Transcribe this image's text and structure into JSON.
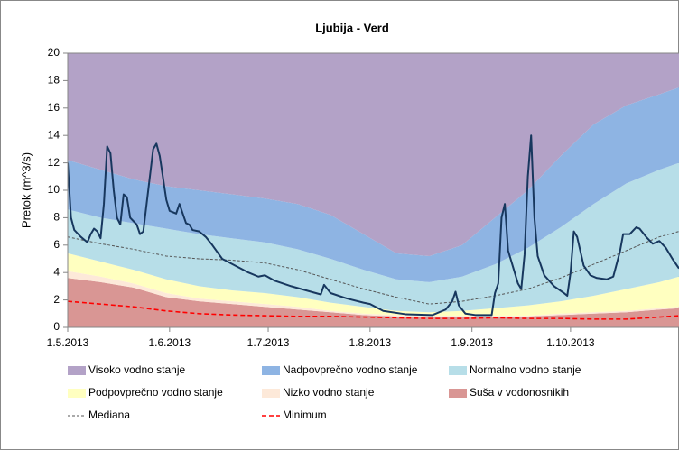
{
  "chart_data": {
    "type": "area",
    "title": "Ljubija - Verd",
    "y_label": "Pretok (m^3/s)",
    "x": [
      "2013-05-01",
      "2013-05-11",
      "2013-05-21",
      "2013-05-31",
      "2013-06-10",
      "2013-06-20",
      "2013-06-30",
      "2013-07-10",
      "2013-07-20",
      "2013-07-30",
      "2013-08-09",
      "2013-08-19",
      "2013-08-29",
      "2013-09-08",
      "2013-09-18",
      "2013-09-28",
      "2013-10-08",
      "2013-10-18",
      "2013-10-28",
      "2013-11-03"
    ],
    "xlim": [
      "2013-05-01",
      "2013-11-03"
    ],
    "xticks": [
      {
        "value": "2013-05-01",
        "label": "1.5.2013"
      },
      {
        "value": "2013-06-01",
        "label": "1.6.2013"
      },
      {
        "value": "2013-07-01",
        "label": "1.7.2013"
      },
      {
        "value": "2013-08-01",
        "label": "1.8.2013"
      },
      {
        "value": "2013-09-01",
        "label": "1.9.2013"
      },
      {
        "value": "2013-10-01",
        "label": "1.10.2013"
      }
    ],
    "ylim": [
      0,
      20
    ],
    "yticks": [
      0,
      2,
      4,
      6,
      8,
      10,
      12,
      14,
      16,
      18,
      20
    ],
    "legend": "bottom",
    "series": [
      {
        "name": "Visoko vodno stanje",
        "type": "area",
        "stacked": true,
        "color": "#b3a2c7",
        "values": [
          7.8,
          8.5,
          9.2,
          9.7,
          10,
          10.3,
          10.6,
          11,
          11.8,
          13.2,
          14.6,
          14.8,
          14,
          12,
          10,
          7.5,
          5.2,
          3.8,
          3,
          2.5
        ]
      },
      {
        "name": "Nadpovprečno vodno stanje",
        "type": "area",
        "stacked": true,
        "color": "#8eb4e3",
        "values": [
          3.6,
          3.5,
          3.2,
          3.1,
          3.2,
          3.2,
          3.2,
          3.3,
          3.2,
          2.6,
          1.9,
          1.9,
          2.3,
          3.4,
          4.2,
          5.2,
          5.8,
          5.7,
          5.5,
          5.5
        ]
      },
      {
        "name": "Normalno vodno stanje",
        "type": "area",
        "stacked": true,
        "color": "#b7dee8",
        "values": [
          3.2,
          3.2,
          3.4,
          3.7,
          3.8,
          3.8,
          3.7,
          3.5,
          3.2,
          2.7,
          2.3,
          2.2,
          2.5,
          3.2,
          4.2,
          5.4,
          6.7,
          7.7,
          8.2,
          8.3
        ]
      },
      {
        "name": "Podpovprečno vodno stanje",
        "type": "area",
        "stacked": true,
        "color": "#ffffc0",
        "values": [
          1.3,
          1.1,
          1.0,
          1.0,
          0.9,
          0.8,
          0.8,
          0.7,
          0.6,
          0.5,
          0.3,
          0.25,
          0.35,
          0.55,
          0.75,
          0.9,
          1.2,
          1.6,
          1.9,
          2.2
        ]
      },
      {
        "name": "Nizko vodno stanje",
        "type": "area",
        "stacked": true,
        "color": "#fde9d9",
        "values": [
          0.5,
          0.4,
          0.3,
          0.3,
          0.2,
          0.2,
          0.2,
          0.2,
          0.1,
          0.1,
          0.1,
          0.05,
          0.05,
          0.05,
          0.05,
          0.1,
          0.1,
          0.1,
          0.1,
          0.1
        ]
      },
      {
        "name": "Suša v vodonosnikih",
        "type": "area",
        "stacked": true,
        "color": "#d99694",
        "values": [
          3.6,
          3.3,
          2.9,
          2.2,
          1.9,
          1.7,
          1.5,
          1.3,
          1.1,
          0.9,
          0.8,
          0.8,
          0.8,
          0.8,
          0.8,
          0.9,
          1.0,
          1.1,
          1.3,
          1.4
        ]
      },
      {
        "name": "Mediana",
        "type": "line",
        "dash": "3,2",
        "width": 1,
        "color": "#555555",
        "values": [
          6.6,
          6.1,
          5.7,
          5.2,
          5.0,
          4.9,
          4.7,
          4.2,
          3.5,
          2.8,
          2.2,
          1.7,
          1.9,
          2.3,
          2.8,
          3.6,
          4.6,
          5.6,
          6.6,
          7.0
        ]
      },
      {
        "name": "Minimum",
        "type": "line",
        "dash": "5,3",
        "width": 1.6,
        "color": "#ff0000",
        "values": [
          1.9,
          1.7,
          1.5,
          1.2,
          1.0,
          0.9,
          0.85,
          0.8,
          0.8,
          0.75,
          0.7,
          0.65,
          0.65,
          0.7,
          0.65,
          0.65,
          0.6,
          0.6,
          0.75,
          0.85
        ]
      },
      {
        "type": "line",
        "width": 2,
        "color": "#17375e",
        "x": [
          "2013-05-01",
          "2013-05-02",
          "2013-05-03",
          "2013-05-05",
          "2013-05-07",
          "2013-05-08",
          "2013-05-09",
          "2013-05-10",
          "2013-05-11",
          "2013-05-12",
          "2013-05-13",
          "2013-05-14",
          "2013-05-15",
          "2013-05-16",
          "2013-05-17",
          "2013-05-18",
          "2013-05-19",
          "2013-05-20",
          "2013-05-22",
          "2013-05-23",
          "2013-05-24",
          "2013-05-26",
          "2013-05-27",
          "2013-05-28",
          "2013-05-29",
          "2013-05-31",
          "2013-06-01",
          "2013-06-03",
          "2013-06-04",
          "2013-06-06",
          "2013-06-07",
          "2013-06-08",
          "2013-06-10",
          "2013-06-12",
          "2013-06-14",
          "2013-06-17",
          "2013-06-21",
          "2013-06-25",
          "2013-06-28",
          "2013-06-30",
          "2013-07-03",
          "2013-07-08",
          "2013-07-14",
          "2013-07-17",
          "2013-07-18",
          "2013-07-20",
          "2013-07-25",
          "2013-07-30",
          "2013-08-01",
          "2013-08-05",
          "2013-08-12",
          "2013-08-20",
          "2013-08-24",
          "2013-08-26",
          "2013-08-27",
          "2013-08-28",
          "2013-08-30",
          "2013-09-02",
          "2013-09-07",
          "2013-09-08",
          "2013-09-09",
          "2013-09-10",
          "2013-09-11",
          "2013-09-12",
          "2013-09-14",
          "2013-09-15",
          "2013-09-16",
          "2013-09-17",
          "2013-09-18",
          "2013-09-19",
          "2013-09-20",
          "2013-09-21",
          "2013-09-23",
          "2013-09-26",
          "2013-09-29",
          "2013-09-30",
          "2013-10-01",
          "2013-10-02",
          "2013-10-03",
          "2013-10-05",
          "2013-10-07",
          "2013-10-09",
          "2013-10-12",
          "2013-10-14",
          "2013-10-16",
          "2013-10-17",
          "2013-10-19",
          "2013-10-21",
          "2013-10-22",
          "2013-10-24",
          "2013-10-26",
          "2013-10-28",
          "2013-10-30",
          "2013-11-01",
          "2013-11-03"
        ],
        "values": [
          12.0,
          8.0,
          7.1,
          6.6,
          6.2,
          6.8,
          7.2,
          7.0,
          6.5,
          9.0,
          13.2,
          12.7,
          10.0,
          8.0,
          7.5,
          9.7,
          9.5,
          8.0,
          7.5,
          6.8,
          7.0,
          11.0,
          13.0,
          13.4,
          12.5,
          9.3,
          8.5,
          8.3,
          9.0,
          7.6,
          7.5,
          7.1,
          7.0,
          6.6,
          6.0,
          5.0,
          4.5,
          4.0,
          3.7,
          3.8,
          3.4,
          3.0,
          2.6,
          2.4,
          3.1,
          2.5,
          2.1,
          1.8,
          1.7,
          1.2,
          0.95,
          0.9,
          1.3,
          1.9,
          2.6,
          1.6,
          1.0,
          0.9,
          0.9,
          2.5,
          3.2,
          8.0,
          9.0,
          5.6,
          4.0,
          3.2,
          2.8,
          5.3,
          11.0,
          14.0,
          8.0,
          5.2,
          3.8,
          3.0,
          2.5,
          2.3,
          4.0,
          7.0,
          6.6,
          4.5,
          3.8,
          3.6,
          3.5,
          3.7,
          5.5,
          6.8,
          6.8,
          7.3,
          7.2,
          6.6,
          6.1,
          6.3,
          5.8,
          5.0,
          4.3
        ]
      }
    ]
  }
}
